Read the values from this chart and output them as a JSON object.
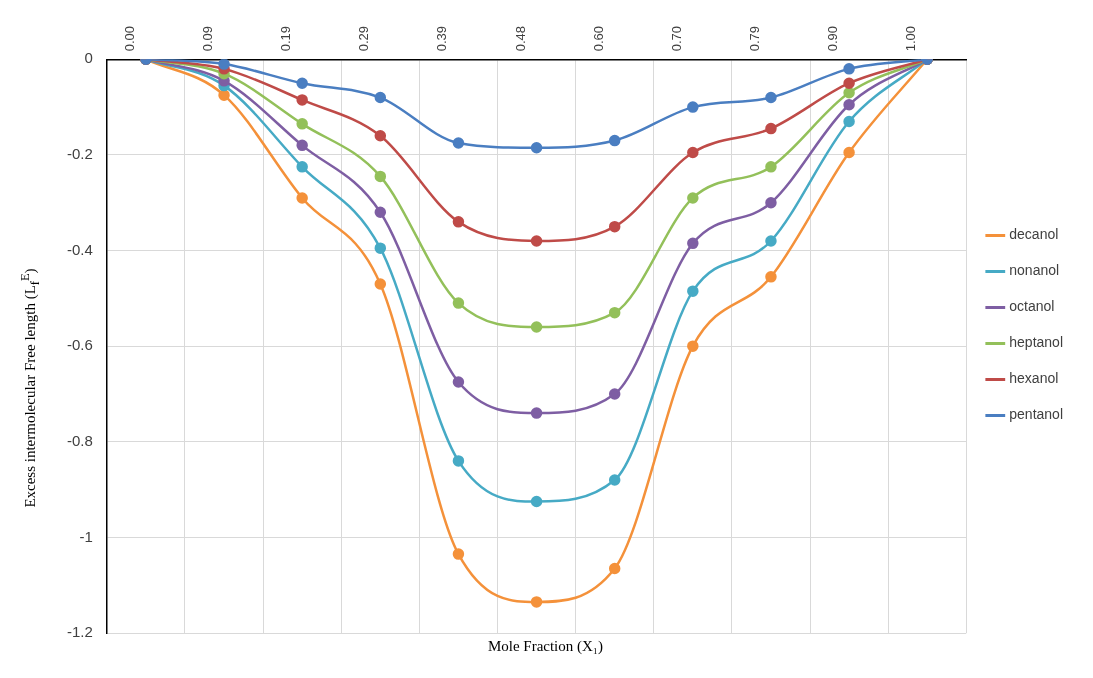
{
  "chart_data": {
    "type": "line",
    "xlabel": "Mole Fraction (X₁)",
    "ylabel": "Excess intermolecular Free length (L$_{f}$$^{E}$)",
    "categories": [
      "0.00",
      "0.09",
      "0.19",
      "0.29",
      "0.39",
      "0.48",
      "0.60",
      "0.70",
      "0.79",
      "0.90",
      "1.00"
    ],
    "series": [
      {
        "name": "decanol",
        "color": "#f4913a",
        "values": [
          0,
          -0.075,
          -0.29,
          -0.47,
          -1.035,
          -1.135,
          -1.065,
          -0.6,
          -0.455,
          -0.195,
          0
        ]
      },
      {
        "name": "nonanol",
        "color": "#46aac5",
        "values": [
          0,
          -0.055,
          -0.225,
          -0.395,
          -0.84,
          -0.925,
          -0.88,
          -0.485,
          -0.38,
          -0.13,
          0
        ]
      },
      {
        "name": "octanol",
        "color": "#7e5ea3",
        "values": [
          0,
          -0.045,
          -0.18,
          -0.32,
          -0.675,
          -0.74,
          -0.7,
          -0.385,
          -0.3,
          -0.095,
          0
        ]
      },
      {
        "name": "heptanol",
        "color": "#93c05a",
        "values": [
          0,
          -0.03,
          -0.135,
          -0.245,
          -0.51,
          -0.56,
          -0.53,
          -0.29,
          -0.225,
          -0.07,
          0
        ]
      },
      {
        "name": "hexanol",
        "color": "#bf4b48",
        "values": [
          0,
          -0.02,
          -0.085,
          -0.16,
          -0.34,
          -0.38,
          -0.35,
          -0.195,
          -0.145,
          -0.05,
          0
        ]
      },
      {
        "name": "pentanol",
        "color": "#4a7ec1",
        "values": [
          0,
          -0.01,
          -0.05,
          -0.08,
          -0.175,
          -0.185,
          -0.17,
          -0.1,
          -0.08,
          -0.02,
          0
        ]
      }
    ],
    "ylim": [
      -1.2,
      0
    ],
    "yticks": [
      0,
      -0.2,
      -0.4,
      -0.6,
      -0.8,
      -1,
      -1.2
    ],
    "grid": true,
    "legend": "right",
    "marker": "circle",
    "line_style": "solid"
  }
}
